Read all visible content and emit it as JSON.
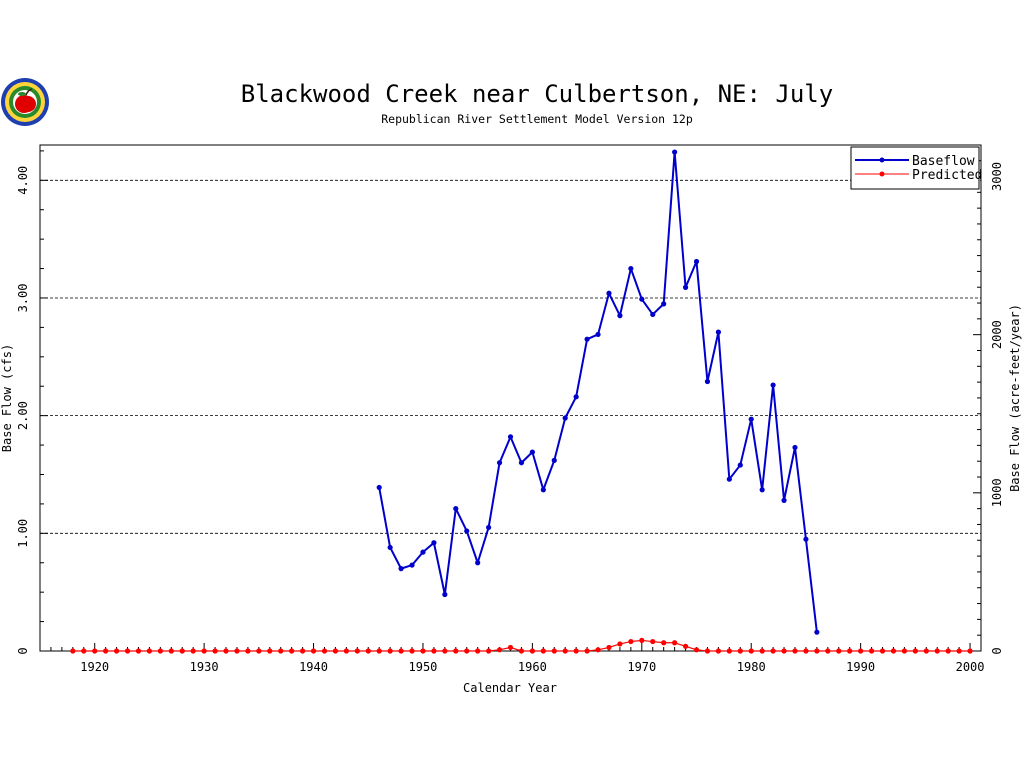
{
  "chart_data": {
    "type": "line",
    "title": "Blackwood Creek near Culbertson, NE: July",
    "subtitle": "Republican River Settlement Model Version 12p",
    "xlabel": "Calendar Year",
    "ylabel": "Base Flow (cfs)",
    "ylabel_right": "Base Flow (acre-feet/year)",
    "xlim": [
      1915,
      2001
    ],
    "ylim": [
      0,
      4.3
    ],
    "x_ticks": [
      1920,
      1930,
      1940,
      1950,
      1960,
      1970,
      1980,
      1990,
      2000
    ],
    "y_ticks": [
      {
        "value": 0,
        "label": "0"
      },
      {
        "value": 1,
        "label": "1.00"
      },
      {
        "value": 2,
        "label": "2.00"
      },
      {
        "value": 3,
        "label": "3.00"
      },
      {
        "value": 4,
        "label": "4.00"
      }
    ],
    "y_right_ticks": [
      {
        "value": 0,
        "label": "0"
      },
      {
        "value": 1000,
        "label": "1000"
      },
      {
        "value": 2000,
        "label": "2000"
      },
      {
        "value": 3000,
        "label": "3000"
      }
    ],
    "y_right_per_cfs": 744,
    "grid": {
      "y": true,
      "x": false,
      "style": "dashed"
    },
    "legend_position": "top-right",
    "series": [
      {
        "name": "Baseflow",
        "color": "#0000cc",
        "x": [
          1946,
          1947,
          1948,
          1949,
          1950,
          1951,
          1952,
          1953,
          1954,
          1955,
          1956,
          1957,
          1958,
          1959,
          1960,
          1961,
          1962,
          1963,
          1964,
          1965,
          1966,
          1967,
          1968,
          1969,
          1970,
          1971,
          1972,
          1973,
          1974,
          1975,
          1976,
          1977,
          1978,
          1979,
          1980,
          1981,
          1982,
          1983,
          1984,
          1985,
          1986
        ],
        "values": [
          1.39,
          0.88,
          0.7,
          0.73,
          0.84,
          0.92,
          0.48,
          1.21,
          1.02,
          0.75,
          1.05,
          1.6,
          1.82,
          1.6,
          1.69,
          1.37,
          1.62,
          1.98,
          2.16,
          2.65,
          2.69,
          3.04,
          2.85,
          3.25,
          2.99,
          2.86,
          2.95,
          4.24,
          3.09,
          3.31,
          2.29,
          2.71,
          1.46,
          1.58,
          1.97,
          1.37,
          2.26,
          1.28,
          1.73,
          0.95,
          0.16
        ]
      },
      {
        "name": "Predicted",
        "color": "#ff0000",
        "x": [
          1918,
          1919,
          1920,
          1921,
          1922,
          1923,
          1924,
          1925,
          1926,
          1927,
          1928,
          1929,
          1930,
          1931,
          1932,
          1933,
          1934,
          1935,
          1936,
          1937,
          1938,
          1939,
          1940,
          1941,
          1942,
          1943,
          1944,
          1945,
          1946,
          1947,
          1948,
          1949,
          1950,
          1951,
          1952,
          1953,
          1954,
          1955,
          1956,
          1957,
          1958,
          1959,
          1960,
          1961,
          1962,
          1963,
          1964,
          1965,
          1966,
          1967,
          1968,
          1969,
          1970,
          1971,
          1972,
          1973,
          1974,
          1975,
          1976,
          1977,
          1978,
          1979,
          1980,
          1981,
          1982,
          1983,
          1984,
          1985,
          1986,
          1987,
          1988,
          1989,
          1990,
          1991,
          1992,
          1993,
          1994,
          1995,
          1996,
          1997,
          1998,
          1999,
          2000
        ],
        "values": [
          0,
          0,
          0,
          0,
          0,
          0,
          0,
          0,
          0,
          0,
          0,
          0,
          0,
          0,
          0,
          0,
          0,
          0,
          0,
          0,
          0,
          0,
          0,
          0,
          0,
          0,
          0,
          0,
          0,
          0,
          0,
          0,
          0,
          0,
          0,
          0,
          0,
          0,
          0,
          0.01,
          0.03,
          0,
          0,
          0,
          0,
          0,
          0,
          0,
          0.01,
          0.03,
          0.06,
          0.08,
          0.09,
          0.08,
          0.07,
          0.07,
          0.04,
          0.01,
          0,
          0,
          0,
          0,
          0,
          0,
          0,
          0,
          0,
          0,
          0,
          0,
          0,
          0,
          0,
          0,
          0,
          0,
          0,
          0,
          0,
          0,
          0,
          0,
          0
        ]
      }
    ]
  }
}
